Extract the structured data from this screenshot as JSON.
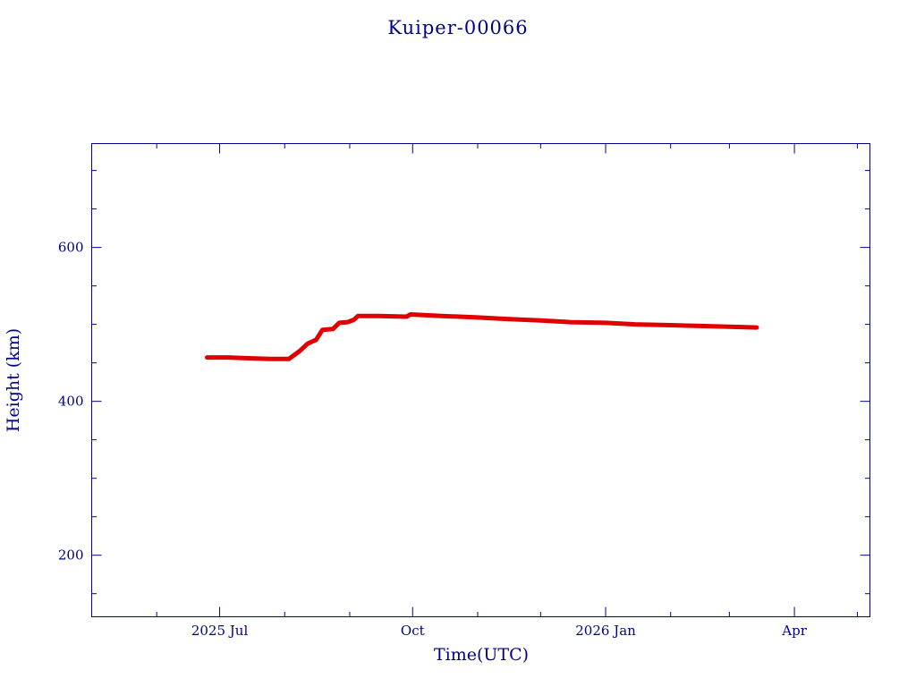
{
  "chart_data": {
    "type": "line",
    "title": "Kuiper-00066",
    "xlabel": "Time(UTC)",
    "ylabel": "Height (km)",
    "xlim": [
      "2025-05-01",
      "2026-05-07"
    ],
    "ylim": [
      120,
      735
    ],
    "x_ticks": [
      {
        "date": "2025-07-01",
        "label": "2025 Jul"
      },
      {
        "date": "2025-10-01",
        "label": "Oct"
      },
      {
        "date": "2026-01-01",
        "label": "2026 Jan"
      },
      {
        "date": "2026-04-01",
        "label": "Apr"
      }
    ],
    "x_minor_ticks": [
      "2025-05-01",
      "2025-06-01",
      "2025-08-01",
      "2025-09-01",
      "2025-11-01",
      "2025-12-01",
      "2026-02-01",
      "2026-03-01",
      "2026-05-01"
    ],
    "y_ticks": [
      200,
      400,
      600
    ],
    "y_minor_ticks": [
      150,
      250,
      300,
      350,
      450,
      500,
      550,
      650,
      700
    ],
    "grid": false,
    "series": [
      {
        "color": "#e00000",
        "points": [
          [
            "2025-06-25",
            457
          ],
          [
            "2025-07-05",
            457
          ],
          [
            "2025-07-15",
            456
          ],
          [
            "2025-07-25",
            455
          ],
          [
            "2025-08-03",
            455
          ],
          [
            "2025-08-08",
            465
          ],
          [
            "2025-08-12",
            475
          ],
          [
            "2025-08-16",
            480
          ],
          [
            "2025-08-19",
            493
          ],
          [
            "2025-08-24",
            494
          ],
          [
            "2025-08-27",
            502
          ],
          [
            "2025-08-31",
            503
          ],
          [
            "2025-09-03",
            506
          ],
          [
            "2025-09-05",
            511
          ],
          [
            "2025-09-15",
            511
          ],
          [
            "2025-09-28",
            510
          ],
          [
            "2025-09-30",
            513
          ],
          [
            "2025-10-15",
            511
          ],
          [
            "2025-11-01",
            509
          ],
          [
            "2025-11-15",
            507
          ],
          [
            "2025-12-01",
            505
          ],
          [
            "2025-12-15",
            503
          ],
          [
            "2026-01-01",
            502
          ],
          [
            "2026-01-15",
            500
          ],
          [
            "2026-02-01",
            499
          ],
          [
            "2026-02-15",
            498
          ],
          [
            "2026-03-01",
            497
          ],
          [
            "2026-03-14",
            496
          ]
        ]
      }
    ]
  }
}
